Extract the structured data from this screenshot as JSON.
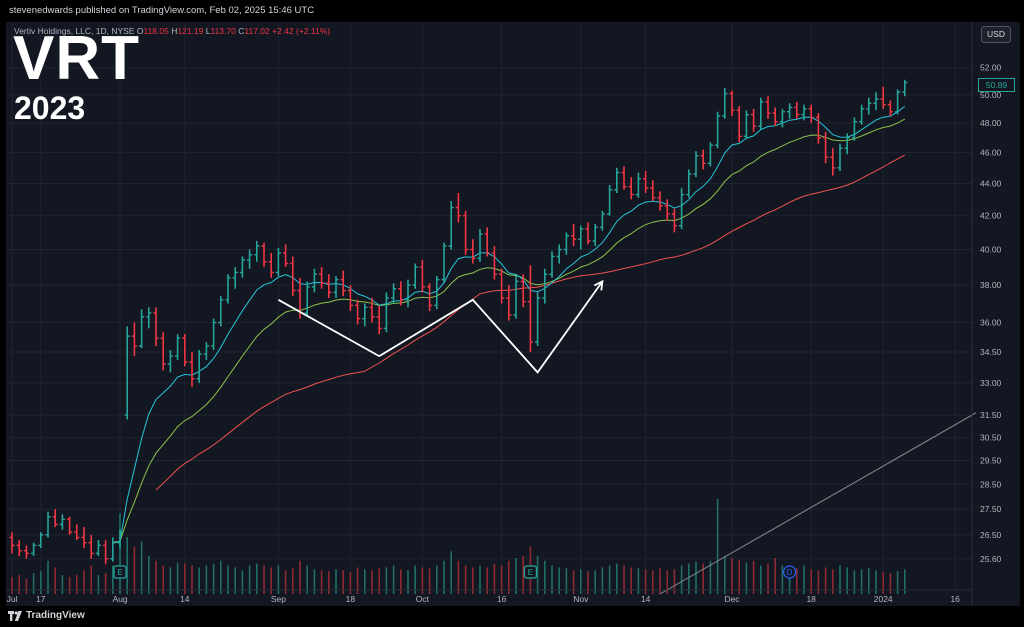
{
  "header": {
    "published_text": "stevenedwards published on TradingView.com, Feb 02, 2025 15:46 UTC"
  },
  "legend": {
    "symbol": "Vertiv Holdings, LLC, 1D, NYSE",
    "open_label": "O",
    "open": "118.05",
    "high_label": "H",
    "high": "121.19",
    "low_label": "L",
    "low": "113.70",
    "close_label": "C",
    "close": "117.02",
    "change": "+2.42 (+2.11%)"
  },
  "overlay": {
    "ticker": "VRT",
    "year": "2023"
  },
  "currency_button": "USD",
  "last_price": "50.89",
  "footer": {
    "brand": "TradingView"
  },
  "colors": {
    "up": "#26a69a",
    "down": "#f23645",
    "background": "#131722",
    "ema_fast": "#26c6da",
    "ema_mid": "#8bc34a",
    "sma_slow": "#ef5350",
    "pattern": "#ffffff"
  },
  "chart_data": {
    "type": "ohlc-bar",
    "y_scale": "log",
    "ylim": [
      24.9,
      53.5
    ],
    "y_ticks": [
      52.0,
      50.0,
      48.0,
      46.0,
      44.0,
      42.0,
      40.0,
      38.0,
      36.0,
      34.5,
      33.0,
      31.5,
      30.5,
      29.5,
      28.5,
      27.5,
      26.5,
      25.6
    ],
    "x_labels": [
      {
        "label": "Jul",
        "index": 0
      },
      {
        "label": "17",
        "index": 4
      },
      {
        "label": "Aug",
        "index": 15
      },
      {
        "label": "14",
        "index": 24
      },
      {
        "label": "Sep",
        "index": 37
      },
      {
        "label": "18",
        "index": 47
      },
      {
        "label": "Oct",
        "index": 57
      },
      {
        "label": "16",
        "index": 68
      },
      {
        "label": "Nov",
        "index": 79
      },
      {
        "label": "14",
        "index": 88
      },
      {
        "label": "Dec",
        "index": 100
      },
      {
        "label": "18",
        "index": 111
      },
      {
        "label": "2024",
        "index": 121
      },
      {
        "label": "16",
        "index": 131
      }
    ],
    "candles": [
      [
        26.4,
        26.6,
        25.8,
        26.1
      ],
      [
        26.1,
        26.3,
        25.7,
        25.9
      ],
      [
        25.9,
        26.1,
        25.6,
        25.8
      ],
      [
        25.8,
        26.2,
        25.7,
        26.1
      ],
      [
        26.1,
        26.6,
        26.0,
        26.5
      ],
      [
        26.5,
        27.4,
        26.4,
        27.2
      ],
      [
        27.2,
        27.5,
        26.8,
        26.9
      ],
      [
        26.9,
        27.3,
        26.7,
        27.1
      ],
      [
        27.1,
        27.2,
        26.5,
        26.6
      ],
      [
        26.6,
        26.9,
        26.3,
        26.4
      ],
      [
        26.4,
        26.8,
        26.0,
        26.2
      ],
      [
        26.2,
        26.5,
        25.6,
        25.8
      ],
      [
        25.8,
        26.3,
        25.7,
        26.1
      ],
      [
        26.1,
        26.3,
        25.4,
        25.6
      ],
      [
        25.6,
        26.4,
        25.5,
        26.2
      ],
      [
        26.2,
        26.7,
        26.0,
        26.6
      ],
      [
        31.5,
        35.8,
        31.3,
        35.3
      ],
      [
        35.3,
        36.0,
        34.3,
        34.8
      ],
      [
        34.8,
        36.7,
        34.7,
        36.3
      ],
      [
        36.3,
        36.8,
        35.7,
        36.5
      ],
      [
        36.5,
        36.8,
        34.8,
        35.2
      ],
      [
        35.2,
        35.5,
        33.6,
        33.9
      ],
      [
        33.9,
        34.6,
        33.5,
        34.3
      ],
      [
        34.3,
        35.4,
        34.1,
        35.2
      ],
      [
        35.2,
        35.4,
        33.8,
        34.0
      ],
      [
        34.0,
        34.5,
        32.8,
        33.2
      ],
      [
        33.2,
        34.6,
        33.0,
        34.4
      ],
      [
        34.4,
        35.0,
        34.1,
        34.8
      ],
      [
        34.8,
        36.2,
        34.6,
        36.0
      ],
      [
        36.0,
        37.4,
        35.8,
        37.2
      ],
      [
        37.2,
        38.6,
        37.0,
        38.4
      ],
      [
        38.4,
        39.0,
        37.8,
        38.7
      ],
      [
        38.7,
        39.6,
        38.4,
        39.4
      ],
      [
        39.4,
        40.0,
        38.9,
        39.7
      ],
      [
        39.7,
        40.5,
        39.3,
        40.2
      ],
      [
        40.2,
        40.4,
        39.0,
        39.3
      ],
      [
        39.3,
        39.8,
        38.4,
        38.7
      ],
      [
        38.7,
        40.1,
        38.5,
        39.8
      ],
      [
        39.8,
        40.3,
        39.0,
        39.2
      ],
      [
        39.2,
        39.6,
        37.4,
        37.7
      ],
      [
        37.7,
        38.4,
        36.2,
        36.5
      ],
      [
        36.5,
        38.2,
        36.3,
        37.9
      ],
      [
        37.9,
        38.9,
        37.6,
        38.6
      ],
      [
        38.6,
        39.0,
        37.8,
        38.1
      ],
      [
        38.1,
        38.6,
        37.3,
        37.6
      ],
      [
        37.6,
        38.5,
        37.3,
        38.3
      ],
      [
        38.3,
        38.8,
        37.4,
        37.7
      ],
      [
        37.7,
        38.0,
        36.6,
        36.9
      ],
      [
        36.9,
        37.2,
        35.9,
        36.2
      ],
      [
        36.2,
        37.0,
        35.8,
        36.8
      ],
      [
        36.8,
        37.3,
        36.0,
        36.3
      ],
      [
        36.3,
        36.9,
        35.4,
        35.7
      ],
      [
        35.7,
        37.6,
        35.5,
        37.3
      ],
      [
        37.3,
        38.1,
        37.0,
        37.8
      ],
      [
        37.8,
        38.2,
        36.9,
        37.2
      ],
      [
        37.2,
        38.3,
        36.8,
        38.0
      ],
      [
        38.0,
        39.2,
        37.8,
        39.0
      ],
      [
        39.0,
        39.4,
        37.6,
        37.9
      ],
      [
        37.9,
        38.1,
        36.6,
        36.9
      ],
      [
        36.9,
        38.5,
        36.7,
        38.3
      ],
      [
        38.3,
        40.4,
        38.1,
        40.2
      ],
      [
        40.2,
        42.9,
        40.0,
        42.5
      ],
      [
        42.5,
        43.4,
        41.6,
        42.0
      ],
      [
        42.0,
        42.3,
        39.7,
        40.0
      ],
      [
        40.0,
        40.6,
        39.2,
        39.5
      ],
      [
        39.5,
        41.2,
        39.3,
        40.9
      ],
      [
        40.9,
        41.3,
        39.6,
        39.8
      ],
      [
        39.8,
        40.2,
        38.3,
        38.6
      ],
      [
        38.6,
        38.9,
        37.0,
        37.3
      ],
      [
        37.3,
        38.0,
        36.1,
        36.4
      ],
      [
        36.4,
        38.5,
        36.2,
        38.2
      ],
      [
        38.2,
        38.6,
        36.8,
        37.1
      ],
      [
        37.1,
        39.1,
        34.5,
        35.0
      ],
      [
        35.0,
        37.6,
        34.8,
        37.3
      ],
      [
        37.3,
        38.9,
        37.0,
        38.6
      ],
      [
        38.6,
        39.9,
        38.4,
        39.6
      ],
      [
        39.6,
        40.3,
        39.2,
        40.0
      ],
      [
        40.0,
        41.0,
        39.7,
        40.8
      ],
      [
        40.8,
        41.5,
        40.2,
        40.6
      ],
      [
        40.6,
        41.4,
        40.0,
        41.2
      ],
      [
        41.2,
        41.6,
        40.3,
        40.5
      ],
      [
        40.5,
        41.5,
        40.2,
        41.3
      ],
      [
        41.3,
        42.3,
        41.1,
        42.1
      ],
      [
        42.1,
        43.9,
        42.0,
        43.6
      ],
      [
        43.6,
        45.0,
        43.4,
        44.7
      ],
      [
        44.7,
        45.1,
        43.6,
        43.8
      ],
      [
        43.8,
        44.4,
        43.0,
        43.3
      ],
      [
        43.3,
        44.7,
        43.1,
        44.3
      ],
      [
        44.3,
        44.8,
        43.4,
        43.7
      ],
      [
        43.7,
        44.2,
        42.9,
        43.1
      ],
      [
        43.1,
        43.5,
        42.3,
        42.6
      ],
      [
        42.6,
        43.0,
        41.7,
        42.1
      ],
      [
        42.1,
        42.4,
        41.0,
        41.4
      ],
      [
        41.4,
        43.7,
        41.2,
        43.3
      ],
      [
        43.3,
        44.9,
        43.1,
        44.6
      ],
      [
        44.6,
        46.1,
        44.4,
        45.8
      ],
      [
        45.8,
        46.2,
        44.9,
        45.3
      ],
      [
        45.3,
        46.7,
        45.1,
        46.5
      ],
      [
        46.5,
        48.8,
        46.3,
        48.5
      ],
      [
        48.5,
        50.5,
        48.3,
        50.1
      ],
      [
        50.1,
        50.3,
        48.5,
        48.9
      ],
      [
        48.9,
        49.2,
        46.7,
        47.1
      ],
      [
        47.1,
        48.9,
        46.9,
        48.6
      ],
      [
        48.6,
        49.0,
        47.4,
        47.8
      ],
      [
        47.8,
        49.8,
        47.6,
        49.5
      ],
      [
        49.5,
        49.9,
        48.3,
        48.7
      ],
      [
        48.7,
        49.1,
        47.8,
        48.1
      ],
      [
        48.1,
        49.0,
        47.7,
        48.8
      ],
      [
        48.8,
        49.4,
        48.3,
        49.1
      ],
      [
        49.1,
        49.5,
        48.3,
        48.6
      ],
      [
        48.6,
        49.3,
        48.2,
        49.0
      ],
      [
        49.0,
        49.3,
        48.0,
        48.4
      ],
      [
        48.4,
        48.7,
        46.6,
        47.0
      ],
      [
        47.0,
        47.4,
        45.3,
        45.7
      ],
      [
        45.7,
        46.3,
        44.5,
        45.0
      ],
      [
        45.0,
        46.6,
        44.8,
        46.3
      ],
      [
        46.3,
        47.3,
        45.9,
        47.0
      ],
      [
        47.0,
        48.4,
        46.8,
        48.1
      ],
      [
        48.1,
        49.3,
        47.9,
        49.0
      ],
      [
        49.0,
        49.8,
        48.6,
        49.4
      ],
      [
        49.4,
        50.2,
        48.9,
        49.7
      ],
      [
        49.7,
        50.6,
        49.0,
        49.3
      ],
      [
        49.3,
        49.6,
        48.5,
        48.8
      ],
      [
        48.8,
        50.4,
        48.6,
        50.2
      ],
      [
        50.2,
        51.1,
        49.9,
        50.9
      ]
    ],
    "volume_relative": [
      0.18,
      0.2,
      0.16,
      0.22,
      0.24,
      0.35,
      0.28,
      0.2,
      0.18,
      0.2,
      0.25,
      0.3,
      0.2,
      0.22,
      0.3,
      0.85,
      0.6,
      0.5,
      0.55,
      0.4,
      0.35,
      0.3,
      0.28,
      0.33,
      0.32,
      0.3,
      0.28,
      0.3,
      0.32,
      0.35,
      0.3,
      0.28,
      0.25,
      0.3,
      0.32,
      0.3,
      0.28,
      0.3,
      0.25,
      0.27,
      0.35,
      0.3,
      0.26,
      0.25,
      0.24,
      0.26,
      0.25,
      0.23,
      0.28,
      0.26,
      0.25,
      0.27,
      0.28,
      0.3,
      0.26,
      0.25,
      0.3,
      0.28,
      0.27,
      0.3,
      0.35,
      0.45,
      0.35,
      0.3,
      0.28,
      0.3,
      0.28,
      0.32,
      0.3,
      0.35,
      0.38,
      0.4,
      0.5,
      0.4,
      0.35,
      0.3,
      0.28,
      0.27,
      0.25,
      0.26,
      0.24,
      0.25,
      0.28,
      0.3,
      0.32,
      0.3,
      0.28,
      0.27,
      0.26,
      0.25,
      0.27,
      0.25,
      0.26,
      0.3,
      0.32,
      0.34,
      0.32,
      0.35,
      1.0,
      0.4,
      0.38,
      0.36,
      0.33,
      0.35,
      0.3,
      0.32,
      0.38,
      0.3,
      0.28,
      0.27,
      0.3,
      0.26,
      0.25,
      0.28,
      0.26,
      0.3,
      0.28,
      0.25,
      0.26,
      0.27,
      0.25,
      0.23,
      0.22,
      0.24,
      0.26
    ],
    "events": [
      {
        "label": "E",
        "index": 15
      },
      {
        "label": "E",
        "index": 72
      },
      {
        "label": "D",
        "index": 108
      }
    ],
    "pattern_points": [
      {
        "index": 37,
        "price": 37.2
      },
      {
        "index": 51,
        "price": 34.3
      },
      {
        "index": 64,
        "price": 37.2
      },
      {
        "index": 73,
        "price": 33.5
      },
      {
        "index": 82,
        "price": 38.2
      }
    ]
  }
}
